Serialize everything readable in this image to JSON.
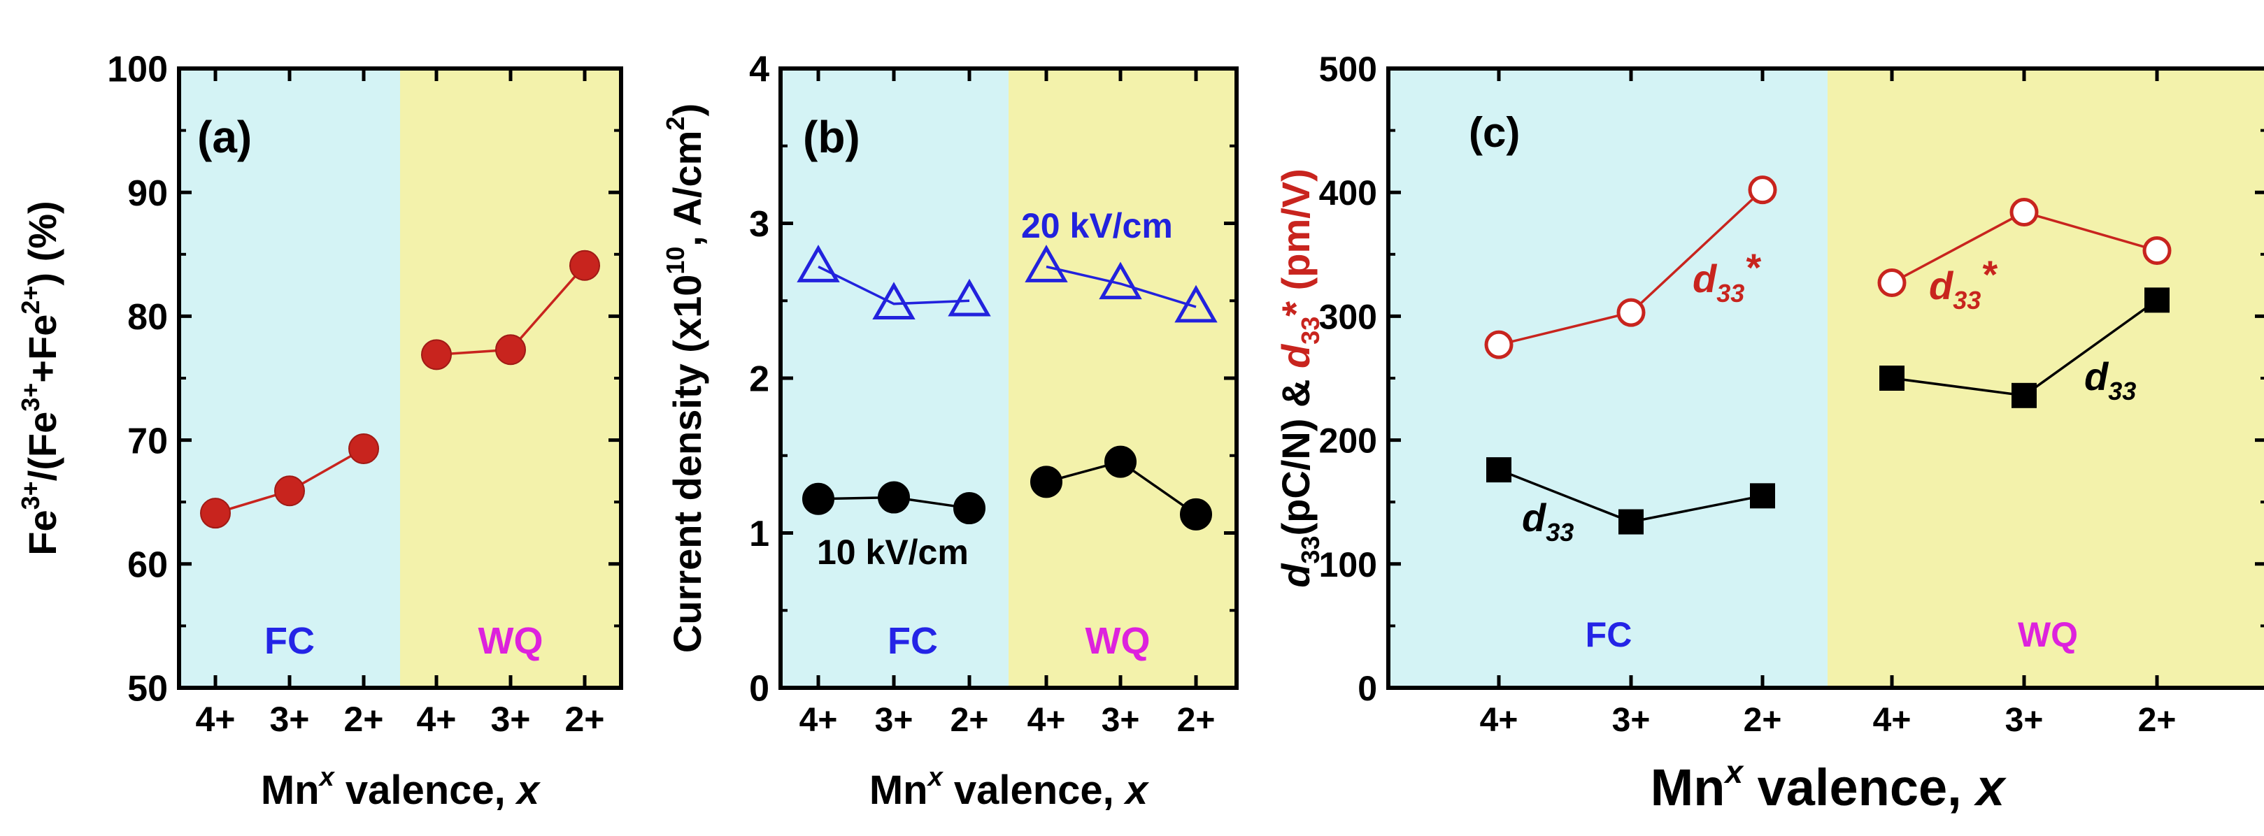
{
  "colors": {
    "fc_background": "#d4f3f5",
    "wq_background": "#f3f2ab",
    "fc_label": "#2424e6",
    "wq_label": "#dd22dd",
    "red_series": "#c8241e",
    "blue_series": "#2222dd",
    "black_series": "#000000"
  },
  "chart_data": [
    {
      "panel": "(a)",
      "type": "scatter",
      "categories": [
        "4+",
        "3+",
        "2+",
        "4+",
        "3+",
        "2+"
      ],
      "xlabel": "Mn^x valence, x",
      "ylabel": "Fe3+/(Fe3++Fe2+) (%)",
      "ylim": [
        50,
        100
      ],
      "yticks": [
        "50",
        "60",
        "70",
        "80",
        "90",
        "100"
      ],
      "regions": [
        "FC",
        "WQ"
      ],
      "series": [
        {
          "segments": [
            [
              64.1,
              65.9,
              69.3
            ],
            [
              76.9,
              77.3,
              84.1
            ]
          ],
          "marker": "filled-circle",
          "color": "red"
        }
      ]
    },
    {
      "panel": "(b)",
      "type": "scatter",
      "categories": [
        "4+",
        "3+",
        "2+",
        "4+",
        "3+",
        "2+"
      ],
      "xlabel": "Mn^x valence, x",
      "ylabel": "Current density (x10^10, A/cm^2)",
      "ylim": [
        0,
        4
      ],
      "yticks": [
        "0",
        "1",
        "2",
        "3",
        "4"
      ],
      "regions": [
        "FC",
        "WQ"
      ],
      "series": [
        {
          "name": "20 kV/cm",
          "segments": [
            [
              2.72,
              2.48,
              2.5
            ],
            [
              2.72,
              2.61,
              2.46
            ]
          ],
          "marker": "open-triangle",
          "color": "blue"
        },
        {
          "name": "10 kV/cm",
          "segments": [
            [
              1.22,
              1.23,
              1.16
            ],
            [
              1.33,
              1.46,
              1.12
            ]
          ],
          "marker": "filled-circle",
          "color": "black"
        }
      ]
    },
    {
      "panel": "(c)",
      "type": "scatter",
      "categories": [
        "4+",
        "3+",
        "2+",
        "4+",
        "3+",
        "2+"
      ],
      "xlabel": "Mn^x valence, x",
      "ylabel": "d33(pC/N) & d33* (pm/V)",
      "ylim": [
        0,
        500
      ],
      "yticks": [
        "0",
        "100",
        "200",
        "300",
        "400",
        "500"
      ],
      "regions": [
        "FC",
        "WQ"
      ],
      "series": [
        {
          "name": "d33*",
          "segments": [
            [
              277,
              303,
              402
            ],
            [
              327,
              384,
              353
            ]
          ],
          "marker": "open-circle",
          "color": "red"
        },
        {
          "name": "d33",
          "segments": [
            [
              176,
              134,
              155
            ],
            [
              250,
              236,
              313
            ]
          ],
          "marker": "filled-square",
          "color": "black"
        }
      ]
    }
  ]
}
